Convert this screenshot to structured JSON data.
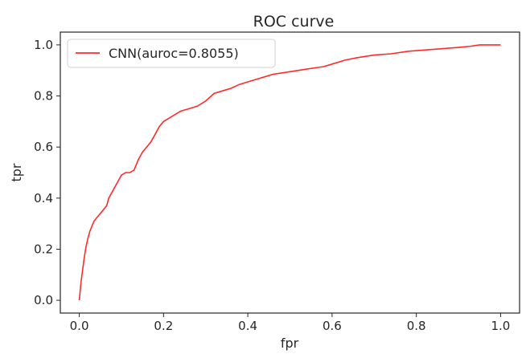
{
  "chart_data": {
    "type": "line",
    "title": "ROC curve",
    "xlabel": "fpr",
    "ylabel": "tpr",
    "xlim": [
      -0.045,
      1.045
    ],
    "ylim": [
      -0.05,
      1.05
    ],
    "xticks": [
      0.0,
      0.2,
      0.4,
      0.6,
      0.8,
      1.0
    ],
    "xtick_labels": [
      "0.0",
      "0.2",
      "0.4",
      "0.6",
      "0.8",
      "1.0"
    ],
    "yticks": [
      0.0,
      0.2,
      0.4,
      0.6,
      0.8,
      1.0
    ],
    "ytick_labels": [
      "0.0",
      "0.2",
      "0.4",
      "0.6",
      "0.8",
      "1.0"
    ],
    "grid": false,
    "legend_position": "top-left",
    "series": [
      {
        "name": "CNN(auroc=0.8055)",
        "color": "#ff2a2a",
        "x": [
          0.0,
          0.004,
          0.008,
          0.012,
          0.016,
          0.02,
          0.025,
          0.03,
          0.035,
          0.04,
          0.05,
          0.06,
          0.065,
          0.07,
          0.08,
          0.09,
          0.1,
          0.11,
          0.12,
          0.13,
          0.14,
          0.15,
          0.16,
          0.17,
          0.18,
          0.19,
          0.2,
          0.21,
          0.22,
          0.23,
          0.24,
          0.25,
          0.26,
          0.28,
          0.3,
          0.32,
          0.34,
          0.36,
          0.38,
          0.4,
          0.42,
          0.44,
          0.46,
          0.48,
          0.5,
          0.52,
          0.54,
          0.56,
          0.58,
          0.6,
          0.63,
          0.66,
          0.7,
          0.74,
          0.78,
          0.82,
          0.86,
          0.9,
          0.93,
          0.95,
          0.97,
          1.0
        ],
        "y": [
          0.0,
          0.07,
          0.12,
          0.17,
          0.21,
          0.24,
          0.27,
          0.29,
          0.31,
          0.32,
          0.34,
          0.36,
          0.37,
          0.4,
          0.43,
          0.46,
          0.49,
          0.5,
          0.5,
          0.51,
          0.55,
          0.58,
          0.6,
          0.62,
          0.65,
          0.68,
          0.7,
          0.71,
          0.72,
          0.73,
          0.74,
          0.745,
          0.75,
          0.76,
          0.78,
          0.81,
          0.82,
          0.83,
          0.845,
          0.855,
          0.865,
          0.875,
          0.885,
          0.89,
          0.895,
          0.9,
          0.905,
          0.91,
          0.915,
          0.925,
          0.94,
          0.95,
          0.96,
          0.965,
          0.975,
          0.98,
          0.985,
          0.99,
          0.995,
          1.0,
          1.0,
          1.0
        ]
      }
    ]
  }
}
